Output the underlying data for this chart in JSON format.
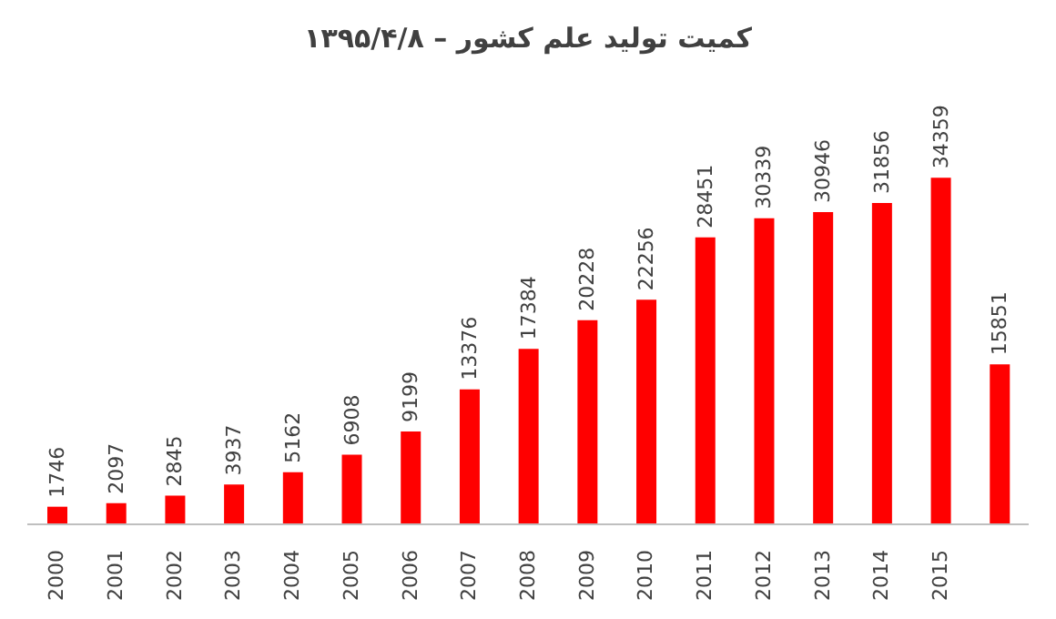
{
  "chart_data": {
    "type": "bar",
    "title": "کمیت تولید علم کشور – ۱۳۹۵/۴/۸",
    "categories": [
      "2000",
      "2001",
      "2002",
      "2003",
      "2004",
      "2005",
      "2006",
      "2007",
      "2008",
      "2009",
      "2010",
      "2011",
      "2012",
      "2013",
      "2014",
      "2015",
      null
    ],
    "values": [
      1746,
      2097,
      2845,
      3937,
      5162,
      6908,
      9199,
      13376,
      17384,
      20228,
      22256,
      28451,
      30339,
      30946,
      31856,
      34359,
      15851
    ],
    "color": "#ff0000",
    "data_labels": true,
    "grid": false,
    "legend": false
  }
}
